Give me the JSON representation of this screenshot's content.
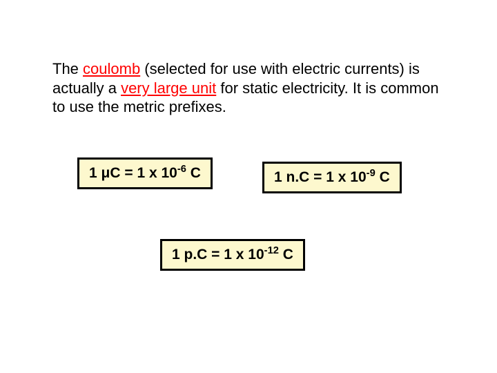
{
  "paragraph": {
    "part1": "The ",
    "coulomb": "coulomb",
    "part2": " (selected for use with electric currents) is actually a ",
    "largeUnit": "very large unit",
    "part3": " for static electricity. It is common to use the metric prefixes."
  },
  "formulas": {
    "micro": {
      "prefix": "1 μC = 1 x 10",
      "exp": "-6",
      "suffix": " C"
    },
    "nano": {
      "prefix": "1 n.C = 1 x 10",
      "exp": "-9",
      "suffix": " C"
    },
    "pico": {
      "prefix": "1 p.C = 1 x 10",
      "exp": "-12",
      "suffix": " C"
    }
  },
  "colors": {
    "background": "#ffffff",
    "text": "#000000",
    "highlight": "#ff0000",
    "boxFill": "#fdf8ce",
    "boxBorder": "#000000"
  }
}
